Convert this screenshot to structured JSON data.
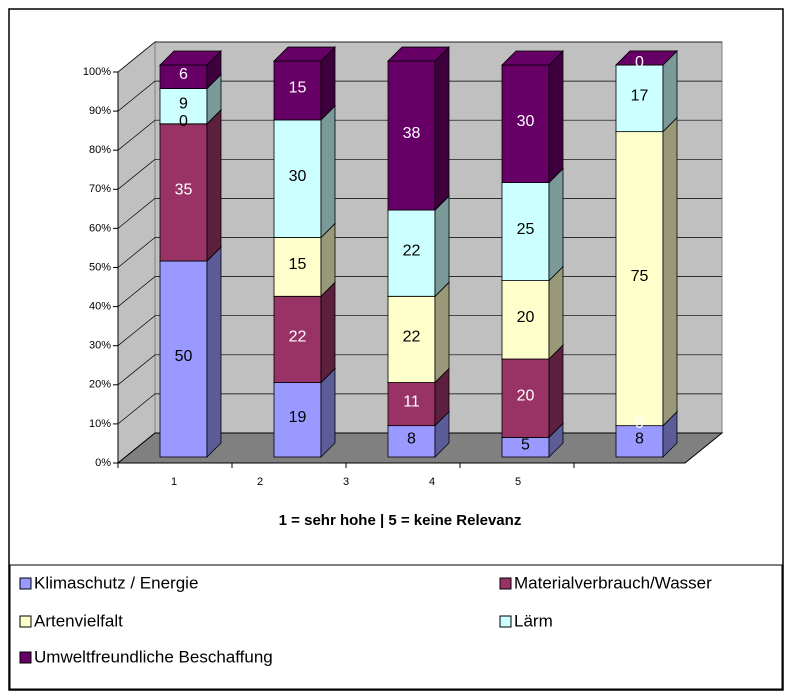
{
  "chart_data": {
    "type": "stacked_bar_3d",
    "categories": [
      "1",
      "2",
      "3",
      "4",
      "5"
    ],
    "x_label": "1 = sehr hohe | 5 = keine Relevanz",
    "series": [
      {
        "name": "Klimaschutz / Energie",
        "color": "#9999ff",
        "values": [
          50,
          19,
          8,
          5,
          8
        ]
      },
      {
        "name": "Materialverbrauch/Wasser",
        "color": "#993366",
        "values": [
          35,
          22,
          11,
          20,
          0
        ]
      },
      {
        "name": "Artenvielfalt",
        "color": "#ffffcc",
        "values": [
          0,
          15,
          22,
          20,
          75
        ]
      },
      {
        "name": "Lärm",
        "color": "#ccffff",
        "values": [
          9,
          30,
          22,
          25,
          17
        ]
      },
      {
        "name": "Umweltfreundliche Beschaffung",
        "color": "#660066",
        "values": [
          6,
          15,
          38,
          30,
          0
        ]
      }
    ],
    "ylim": [
      0,
      100
    ],
    "yticks": [
      {
        "value": 0,
        "label": "0%"
      },
      {
        "value": 10,
        "label": "10%"
      },
      {
        "value": 20,
        "label": "20%"
      },
      {
        "value": 30,
        "label": "30%"
      },
      {
        "value": 40,
        "label": "40%"
      },
      {
        "value": 50,
        "label": "50%"
      },
      {
        "value": 60,
        "label": "60%"
      },
      {
        "value": 70,
        "label": "70%"
      },
      {
        "value": 80,
        "label": "80%"
      },
      {
        "value": 90,
        "label": "90%"
      },
      {
        "value": 100,
        "label": "100%"
      }
    ],
    "grid": true,
    "legend": "bottom"
  }
}
